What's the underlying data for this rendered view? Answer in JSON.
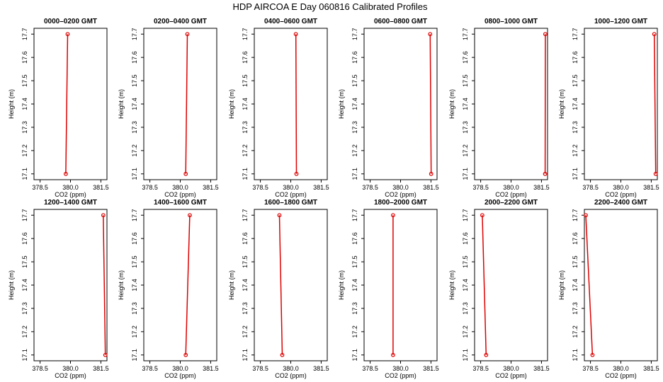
{
  "title": "HDP  AIRCOA E  Day 060816  Calibrated Profiles",
  "series_color": "#dd0000",
  "chart_data": [
    {
      "type": "line",
      "title": "0000–0200 GMT",
      "xlabel": "CO2 (ppm)",
      "ylabel": "Height (m)",
      "xlim": [
        378.2,
        381.8
      ],
      "ylim": [
        17.075,
        17.725
      ],
      "xticks": [
        "378.5",
        "380.0",
        "381.5"
      ],
      "yticks": [
        "17.1",
        "17.2",
        "17.3",
        "17.4",
        "17.5",
        "17.6",
        "17.7"
      ],
      "x": [
        379.77,
        379.86
      ],
      "y": [
        17.1,
        17.7
      ]
    },
    {
      "type": "line",
      "title": "0200–0400 GMT",
      "xlabel": "CO2 (ppm)",
      "ylabel": "Height (m)",
      "xlim": [
        378.2,
        381.8
      ],
      "ylim": [
        17.075,
        17.725
      ],
      "xticks": [
        "378.5",
        "380.0",
        "381.5"
      ],
      "yticks": [
        "17.1",
        "17.2",
        "17.3",
        "17.4",
        "17.5",
        "17.6",
        "17.7"
      ],
      "x": [
        380.27,
        380.35
      ],
      "y": [
        17.1,
        17.7
      ]
    },
    {
      "type": "line",
      "title": "0400–0600 GMT",
      "xlabel": "CO2 (ppm)",
      "ylabel": "Height (m)",
      "xlim": [
        378.2,
        381.8
      ],
      "ylim": [
        17.075,
        17.725
      ],
      "xticks": [
        "378.5",
        "380.0",
        "381.5"
      ],
      "yticks": [
        "17.1",
        "17.2",
        "17.3",
        "17.4",
        "17.5",
        "17.6",
        "17.7"
      ],
      "x": [
        380.28,
        380.25
      ],
      "y": [
        17.1,
        17.7
      ]
    },
    {
      "type": "line",
      "title": "0600–0800 GMT",
      "xlabel": "CO2 (ppm)",
      "ylabel": "Height (m)",
      "xlim": [
        378.2,
        381.8
      ],
      "ylim": [
        17.075,
        17.725
      ],
      "xticks": [
        "378.5",
        "380.0",
        "381.5"
      ],
      "yticks": [
        "17.1",
        "17.2",
        "17.3",
        "17.4",
        "17.5",
        "17.6",
        "17.7"
      ],
      "x": [
        381.51,
        381.46
      ],
      "y": [
        17.1,
        17.7
      ]
    },
    {
      "type": "line",
      "title": "0800–1000 GMT",
      "xlabel": "CO2 (ppm)",
      "ylabel": "Height (m)",
      "xlim": [
        378.2,
        381.8
      ],
      "ylim": [
        17.075,
        17.725
      ],
      "xticks": [
        "378.5",
        "380.0",
        "381.5"
      ],
      "yticks": [
        "17.1",
        "17.2",
        "17.3",
        "17.4",
        "17.5",
        "17.6",
        "17.7"
      ],
      "x": [
        381.68,
        381.69
      ],
      "y": [
        17.1,
        17.7
      ]
    },
    {
      "type": "line",
      "title": "1000–1200 GMT",
      "xlabel": "CO2 (ppm)",
      "ylabel": "Height (m)",
      "xlim": [
        378.2,
        381.8
      ],
      "ylim": [
        17.075,
        17.725
      ],
      "xticks": [
        "378.5",
        "380.0",
        "381.5"
      ],
      "yticks": [
        "17.1",
        "17.2",
        "17.3",
        "17.4",
        "17.5",
        "17.6",
        "17.7"
      ],
      "x": [
        381.72,
        381.65
      ],
      "y": [
        17.1,
        17.7
      ]
    },
    {
      "type": "line",
      "title": "1200–1400 GMT",
      "xlabel": "CO2 (ppm)",
      "ylabel": "Height (m)",
      "xlim": [
        378.2,
        381.8
      ],
      "ylim": [
        17.075,
        17.725
      ],
      "xticks": [
        "378.5",
        "380.0",
        "381.5"
      ],
      "yticks": [
        "17.1",
        "17.2",
        "17.3",
        "17.4",
        "17.5",
        "17.6",
        "17.7"
      ],
      "x": [
        381.72,
        381.62
      ],
      "y": [
        17.1,
        17.7
      ]
    },
    {
      "type": "line",
      "title": "1400–1600 GMT",
      "xlabel": "CO2 (ppm)",
      "ylabel": "Height (m)",
      "xlim": [
        378.2,
        381.8
      ],
      "ylim": [
        17.075,
        17.725
      ],
      "xticks": [
        "378.5",
        "380.0",
        "381.5"
      ],
      "yticks": [
        "17.1",
        "17.2",
        "17.3",
        "17.4",
        "17.5",
        "17.6",
        "17.7"
      ],
      "x": [
        380.27,
        380.47
      ],
      "y": [
        17.1,
        17.7
      ]
    },
    {
      "type": "line",
      "title": "1600–1800 GMT",
      "xlabel": "CO2 (ppm)",
      "ylabel": "Height (m)",
      "xlim": [
        378.2,
        381.8
      ],
      "ylim": [
        17.075,
        17.725
      ],
      "xticks": [
        "378.5",
        "380.0",
        "381.5"
      ],
      "yticks": [
        "17.1",
        "17.2",
        "17.3",
        "17.4",
        "17.5",
        "17.6",
        "17.7"
      ],
      "x": [
        379.58,
        379.44
      ],
      "y": [
        17.1,
        17.7
      ]
    },
    {
      "type": "line",
      "title": "1800–2000 GMT",
      "xlabel": "CO2 (ppm)",
      "ylabel": "Height (m)",
      "xlim": [
        378.2,
        381.8
      ],
      "ylim": [
        17.075,
        17.725
      ],
      "xticks": [
        "378.5",
        "380.0",
        "381.5"
      ],
      "yticks": [
        "17.1",
        "17.2",
        "17.3",
        "17.4",
        "17.5",
        "17.6",
        "17.7"
      ],
      "x": [
        379.63,
        379.63
      ],
      "y": [
        17.1,
        17.7
      ]
    },
    {
      "type": "line",
      "title": "2000–2200 GMT",
      "xlabel": "CO2 (ppm)",
      "ylabel": "Height (m)",
      "xlim": [
        378.2,
        381.8
      ],
      "ylim": [
        17.075,
        17.725
      ],
      "xticks": [
        "378.5",
        "380.0",
        "381.5"
      ],
      "yticks": [
        "17.1",
        "17.2",
        "17.3",
        "17.4",
        "17.5",
        "17.6",
        "17.7"
      ],
      "x": [
        378.77,
        378.58
      ],
      "y": [
        17.1,
        17.7
      ]
    },
    {
      "type": "line",
      "title": "2200–2400 GMT",
      "xlabel": "CO2 (ppm)",
      "ylabel": "Height (m)",
      "xlim": [
        378.2,
        381.8
      ],
      "ylim": [
        17.075,
        17.725
      ],
      "xticks": [
        "378.5",
        "380.0",
        "381.5"
      ],
      "yticks": [
        "17.1",
        "17.2",
        "17.3",
        "17.4",
        "17.5",
        "17.6",
        "17.7"
      ],
      "x": [
        378.6,
        378.27
      ],
      "y": [
        17.1,
        17.7
      ]
    }
  ]
}
